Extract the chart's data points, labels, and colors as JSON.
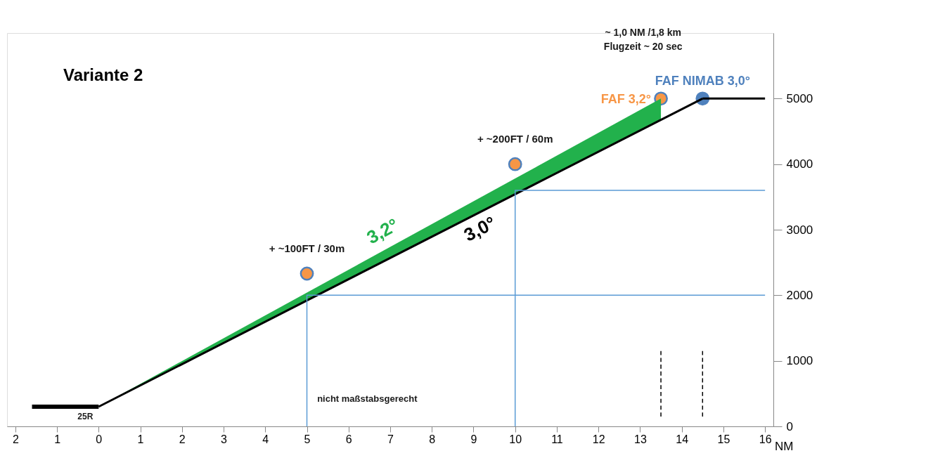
{
  "chart_data": {
    "type": "line",
    "title": "Variante 2",
    "xlabel": "NM",
    "xlim": [
      -2.2,
      16.2
    ],
    "xticks": [
      {
        "value": -2,
        "label": "2"
      },
      {
        "value": -1,
        "label": "1"
      },
      0,
      1,
      2,
      3,
      4,
      5,
      6,
      7,
      8,
      9,
      10,
      11,
      12,
      13,
      14,
      15,
      16
    ],
    "ylim": [
      0,
      6000
    ],
    "yticks": [
      0,
      1000,
      2000,
      3000,
      4000,
      5000
    ],
    "grid": false,
    "series": [
      {
        "name": "3,2°",
        "type": "area",
        "color": "#22b14c",
        "x": [
          0,
          13.5
        ],
        "values": [
          300,
          5000
        ]
      },
      {
        "name": "3,0°",
        "color": "#000000",
        "x": [
          0,
          14.5
        ],
        "values": [
          300,
          5000
        ]
      },
      {
        "name": "25R",
        "color": "#000000",
        "x": [
          -1.6,
          0
        ],
        "values": [
          300,
          300
        ]
      },
      {
        "color": "#000000",
        "x": [
          14.5,
          16
        ],
        "values": [
          5000,
          5000
        ]
      },
      {
        "color": "#5b9bd5",
        "x": [
          5,
          5,
          16
        ],
        "values": [
          0,
          2000,
          2000
        ]
      },
      {
        "color": "#5b9bd5",
        "x": [
          10,
          10,
          16
        ],
        "values": [
          0,
          3600,
          3600
        ]
      },
      {
        "color": "#000000",
        "line_style": "dashed",
        "x": [
          13.5,
          13.5
        ],
        "values": [
          1150,
          150
        ]
      },
      {
        "color": "#000000",
        "line_style": "dashed",
        "x": [
          14.5,
          14.5
        ],
        "values": [
          1150,
          150
        ]
      },
      {
        "name": "FAF 3,2°",
        "type": "scatter",
        "color": "#f79646",
        "x": [
          13.5
        ],
        "values": [
          5000
        ]
      },
      {
        "name": "FAF NIMAB 3,0°",
        "type": "scatter",
        "color": "#4f81bd",
        "x": [
          14.5
        ],
        "values": [
          5000
        ]
      },
      {
        "type": "scatter",
        "color": "#f79646",
        "x": [
          5,
          10
        ],
        "values": [
          2330,
          4000
        ]
      }
    ],
    "annotations": [
      {
        "text": "+ ~100FT / 30m",
        "x": 5,
        "y": 2330
      },
      {
        "text": "+ ~200FT / 60m",
        "x": 10,
        "y": 4000
      },
      "~ 1,0 NM /1,8 km\nFlugzeit ~ 20 sec",
      "nicht maßstabsgerecht"
    ]
  }
}
